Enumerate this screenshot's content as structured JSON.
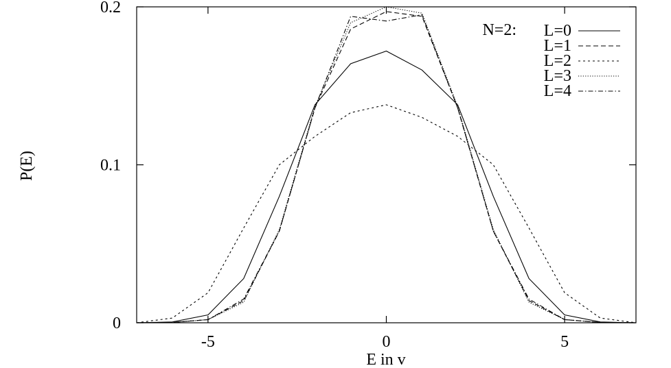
{
  "chart_data": {
    "type": "line",
    "title": "",
    "xlabel": "E in v",
    "ylabel": "P(E)",
    "xlim": [
      -7,
      7
    ],
    "ylim": [
      0,
      0.2
    ],
    "xticks": [
      -5,
      0,
      5
    ],
    "xtick_labels": [
      "-5",
      "0",
      "5"
    ],
    "yticks": [
      0,
      0.1,
      0.2
    ],
    "ytick_labels": [
      "0",
      "0.1",
      "0.2"
    ],
    "grid": false,
    "legend_position": "top-right",
    "legend_prefix": "N=2:",
    "x": [
      -7,
      -6,
      -5,
      -4,
      -3,
      -2,
      -1,
      0,
      1,
      2,
      3,
      4,
      5,
      6,
      7
    ],
    "series": [
      {
        "name": "L=0",
        "dash": "solid",
        "values": [
          0,
          0.0005,
          0.005,
          0.028,
          0.08,
          0.138,
          0.164,
          0.172,
          0.16,
          0.138,
          0.08,
          0.028,
          0.005,
          0.0005,
          0
        ]
      },
      {
        "name": "L=1",
        "dash": "dashed",
        "values": [
          0,
          0.0002,
          0.002,
          0.014,
          0.058,
          0.136,
          0.186,
          0.197,
          0.194,
          0.136,
          0.058,
          0.014,
          0.002,
          0.0002,
          0
        ]
      },
      {
        "name": "L=2",
        "dash": "short-dashed",
        "values": [
          0,
          0.003,
          0.019,
          0.06,
          0.1,
          0.118,
          0.133,
          0.138,
          0.13,
          0.118,
          0.1,
          0.06,
          0.019,
          0.003,
          0
        ]
      },
      {
        "name": "L=3",
        "dash": "dotted",
        "values": [
          0,
          0.0002,
          0.002,
          0.013,
          0.059,
          0.137,
          0.19,
          0.2,
          0.196,
          0.137,
          0.059,
          0.013,
          0.002,
          0.0002,
          0
        ]
      },
      {
        "name": "L=4",
        "dash": "dash-dot",
        "values": [
          0,
          0.0002,
          0.002,
          0.015,
          0.058,
          0.136,
          0.194,
          0.191,
          0.195,
          0.136,
          0.058,
          0.015,
          0.002,
          0.0002,
          0
        ]
      }
    ],
    "line_color": "#000000"
  }
}
